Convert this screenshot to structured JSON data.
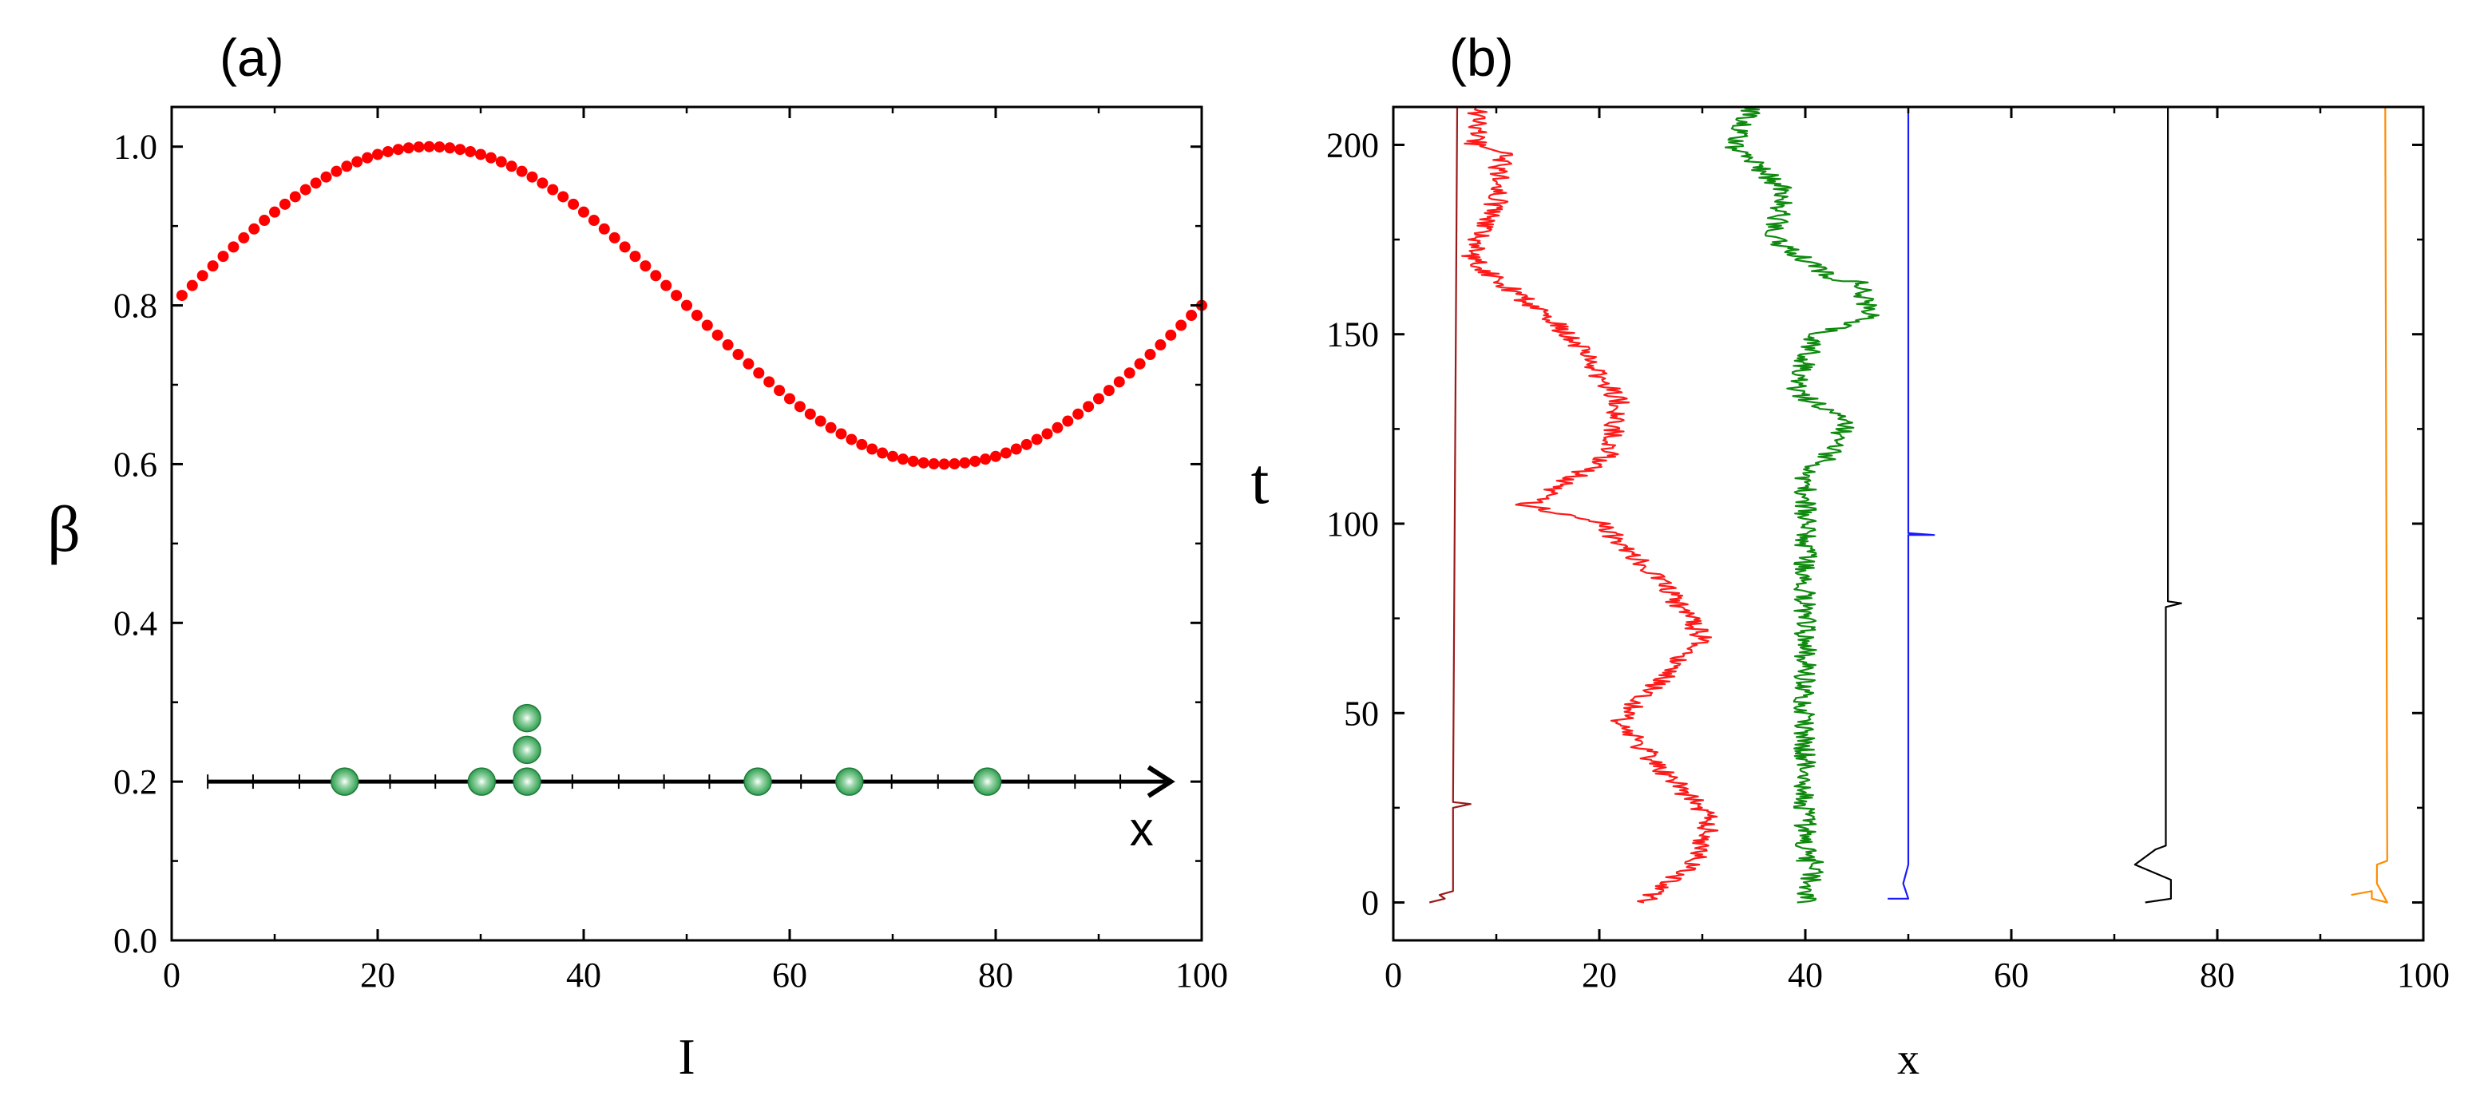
{
  "chart_data": [
    {
      "panel": "(a)",
      "type": "scatter",
      "xlabel": "I",
      "ylabel": "β",
      "xlim": [
        0,
        100
      ],
      "ylim": [
        0,
        1.05
      ],
      "xticks": [
        0,
        20,
        40,
        60,
        80,
        100
      ],
      "yticks": [
        0.0,
        0.2,
        0.4,
        0.6,
        0.8,
        1.0
      ],
      "xtick_labels": [
        "0",
        "20",
        "40",
        "60",
        "80",
        "100"
      ],
      "ytick_labels": [
        "0.0",
        "0.2",
        "0.4",
        "0.6",
        "0.8",
        "1.0"
      ],
      "series": [
        {
          "name": "β(I)",
          "color": "#ff0000",
          "marker": "circle",
          "function": "0.8 + 0.2*sin(2*pi*I/100)",
          "x_start": 1,
          "x_end": 100,
          "x_step": 1
        }
      ],
      "inset": {
        "label": "x",
        "axis_y": 0.2,
        "axis_x_range": [
          3.5,
          97
        ],
        "axis_ticks": [
          3.5,
          7.9,
          12.4,
          16.8,
          21.2,
          25.6,
          30.1,
          34.5,
          38.9,
          43.4,
          47.8,
          52.2,
          56.6,
          61.1,
          65.5,
          69.9,
          74.4,
          78.8,
          83.2,
          87.7,
          92.1
        ],
        "particle_color": "#2e9e4e",
        "particles": [
          {
            "x": 16.8,
            "stack": 0
          },
          {
            "x": 30.1,
            "stack": 0
          },
          {
            "x": 34.5,
            "stack": 0
          },
          {
            "x": 34.5,
            "stack": 1
          },
          {
            "x": 34.5,
            "stack": 2
          },
          {
            "x": 56.9,
            "stack": 0
          },
          {
            "x": 65.8,
            "stack": 0
          },
          {
            "x": 79.2,
            "stack": 0
          }
        ]
      }
    },
    {
      "panel": "(b)",
      "type": "line",
      "xlabel": "x",
      "ylabel": "t",
      "xlim": [
        0,
        100
      ],
      "ylim": [
        -10,
        210
      ],
      "xticks": [
        0,
        20,
        40,
        60,
        80,
        100
      ],
      "yticks": [
        0,
        50,
        100,
        150,
        200
      ],
      "xtick_labels": [
        "0",
        "20",
        "40",
        "60",
        "80",
        "100"
      ],
      "ytick_labels": [
        "0",
        "50",
        "100",
        "150",
        "200"
      ],
      "series": [
        {
          "name": "dark red",
          "color": "#9b1a1a",
          "points": [
            [
              3.5,
              0
            ],
            [
              5,
              1
            ],
            [
              4.5,
              2
            ],
            [
              5.8,
              3
            ],
            [
              5.8,
              25
            ],
            [
              7.5,
              26
            ],
            [
              5.8,
              26.5
            ],
            [
              6.2,
              210
            ]
          ]
        },
        {
          "name": "red",
          "color": "#ff1a1a",
          "random_walk": true,
          "points": [
            [
              24,
              0
            ],
            [
              29,
              10
            ],
            [
              31,
              22
            ],
            [
              26,
              35
            ],
            [
              22,
              48
            ],
            [
              30,
              70
            ],
            [
              26,
              85
            ],
            [
              20,
              100
            ],
            [
              13,
              105
            ],
            [
              21,
              118
            ],
            [
              22,
              132
            ],
            [
              17,
              150
            ],
            [
              10,
              165
            ],
            [
              7.5,
              170
            ],
            [
              10,
              185
            ],
            [
              10.5,
              198
            ],
            [
              8,
              200
            ],
            [
              8,
              210
            ]
          ]
        },
        {
          "name": "green",
          "color": "#0f8a0f",
          "random_walk": true,
          "points": [
            [
              40,
              0
            ],
            [
              41,
              11
            ],
            [
              40,
              11
            ],
            [
              40,
              115
            ],
            [
              42,
              116
            ],
            [
              44,
              127
            ],
            [
              39,
              135
            ],
            [
              41,
              150
            ],
            [
              46.5,
              155
            ],
            [
              45,
              164
            ],
            [
              43,
              164
            ],
            [
              37,
              175
            ],
            [
              38,
              188
            ],
            [
              33,
              200
            ],
            [
              35,
              210
            ]
          ]
        },
        {
          "name": "blue",
          "color": "#1a1aff",
          "points": [
            [
              48,
              1
            ],
            [
              50,
              1
            ],
            [
              49.5,
              5
            ],
            [
              50,
              10
            ],
            [
              50,
              97
            ],
            [
              52.5,
              97
            ],
            [
              50,
              97.5
            ],
            [
              50,
              210
            ]
          ]
        },
        {
          "name": "black",
          "color": "#000000",
          "points": [
            [
              73,
              0
            ],
            [
              75.5,
              1
            ],
            [
              75.5,
              6
            ],
            [
              72,
              10
            ],
            [
              74,
              14
            ],
            [
              75,
              15
            ],
            [
              75,
              78
            ],
            [
              76.5,
              79
            ],
            [
              75.2,
              79.5
            ],
            [
              75.2,
              210
            ]
          ]
        },
        {
          "name": "orange",
          "color": "#ff8c00",
          "points": [
            [
              93,
              2
            ],
            [
              95,
              3
            ],
            [
              95,
              1
            ],
            [
              96.5,
              0
            ],
            [
              95.5,
              5
            ],
            [
              95.5,
              10
            ],
            [
              96.5,
              11
            ],
            [
              96.3,
              210
            ]
          ]
        }
      ]
    }
  ]
}
